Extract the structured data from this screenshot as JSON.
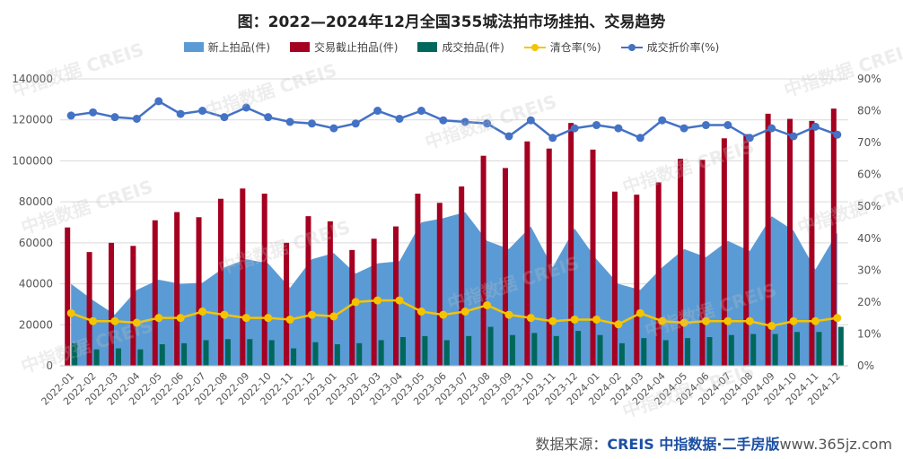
{
  "title": "图：2022—2024年12月全国355城法拍市场挂拍、交易趋势",
  "source_text": "数据来源：",
  "source_brand": "CREIS 中指数据·二手房版",
  "site": "www.365jz.com",
  "watermark": "中指数据 CREIS",
  "colors": {
    "new_listed": "#5b9bd5",
    "deal_deadline": "#a50021",
    "deals": "#00675c",
    "clearance": "#f5c400",
    "discount": "#4472c4"
  },
  "chart_data": {
    "type": "bar",
    "x": [
      "2022-01",
      "2022-02",
      "2022-03",
      "2022-04",
      "2022-05",
      "2022-06",
      "2022-07",
      "2022-08",
      "2022-09",
      "2022-10",
      "2022-11",
      "2022-12",
      "2023-01",
      "2023-02",
      "2023-03",
      "2023-04",
      "2023-05",
      "2023-06",
      "2023-07",
      "2023-08",
      "2023-09",
      "2023-10",
      "2023-11",
      "2023-12",
      "2024-01",
      "2024-02",
      "2024-03",
      "2024-04",
      "2024-05",
      "2024-06",
      "2024-07",
      "2024-08",
      "2024-09",
      "2024-10",
      "2024-11",
      "2024-12"
    ],
    "y_left": {
      "min": 0,
      "max": 140000,
      "ticks": [
        0,
        20000,
        40000,
        60000,
        80000,
        100000,
        120000,
        140000
      ]
    },
    "y_right": {
      "min": 0,
      "max": 90,
      "ticks": [
        "0%",
        "10%",
        "20%",
        "30%",
        "40%",
        "50%",
        "60%",
        "70%",
        "80%",
        "90%"
      ]
    },
    "series": [
      {
        "name": "新上拍品(件)",
        "kind": "area",
        "axis": "left",
        "values": [
          40000,
          32000,
          25000,
          37000,
          42000,
          40000,
          40500,
          48000,
          52000,
          50000,
          38000,
          52000,
          55000,
          45000,
          50000,
          51000,
          70000,
          72000,
          75000,
          61000,
          57000,
          68000,
          48000,
          67000,
          52000,
          40000,
          37000,
          48000,
          57000,
          53000,
          61000,
          56000,
          73000,
          66000,
          47000,
          65000
        ]
      },
      {
        "name": "交易截止拍品(件)",
        "kind": "bar",
        "axis": "left",
        "values": [
          67500,
          55500,
          60000,
          58500,
          71000,
          75000,
          72500,
          81500,
          86500,
          84000,
          60000,
          73000,
          70500,
          56500,
          62000,
          68000,
          84000,
          79500,
          87500,
          102500,
          96500,
          109500,
          106000,
          118500,
          105500,
          85000,
          83500,
          89500,
          101000,
          100500,
          111000,
          113000,
          123000,
          120500,
          119500,
          125500
        ]
      },
      {
        "name": "成交拍品(件)",
        "kind": "bar",
        "axis": "left",
        "values": [
          11000,
          8000,
          8500,
          8000,
          10500,
          11000,
          12500,
          13000,
          13000,
          12500,
          8500,
          11500,
          10500,
          11000,
          12500,
          14000,
          14500,
          12500,
          14500,
          19000,
          15000,
          16000,
          14500,
          17000,
          15000,
          11000,
          13500,
          12500,
          13500,
          14000,
          15000,
          15500,
          15500,
          16500,
          16500,
          19000
        ]
      },
      {
        "name": "清仓率(%)",
        "kind": "line",
        "axis": "right",
        "values": [
          16.5,
          14,
          14,
          13.5,
          15,
          15,
          17,
          16,
          15,
          15,
          14.5,
          16,
          15.5,
          20,
          20.5,
          20.5,
          17,
          16,
          17,
          19,
          16,
          15,
          14,
          14.5,
          14.5,
          13,
          16.5,
          14,
          13.5,
          14,
          14,
          14,
          12.5,
          14,
          14,
          15
        ]
      },
      {
        "name": "成交折价率(%)",
        "kind": "line",
        "axis": "right",
        "values": [
          78.5,
          79.5,
          78,
          77.5,
          83,
          79,
          80,
          78,
          81,
          78,
          76.5,
          76,
          74.5,
          76,
          80,
          77.5,
          80,
          77,
          76.5,
          76,
          72,
          77,
          71.5,
          74.5,
          75.5,
          74.5,
          71.5,
          77,
          74.5,
          75.5,
          75.5,
          71.5,
          74.5,
          72,
          75,
          72.5
        ]
      }
    ]
  }
}
